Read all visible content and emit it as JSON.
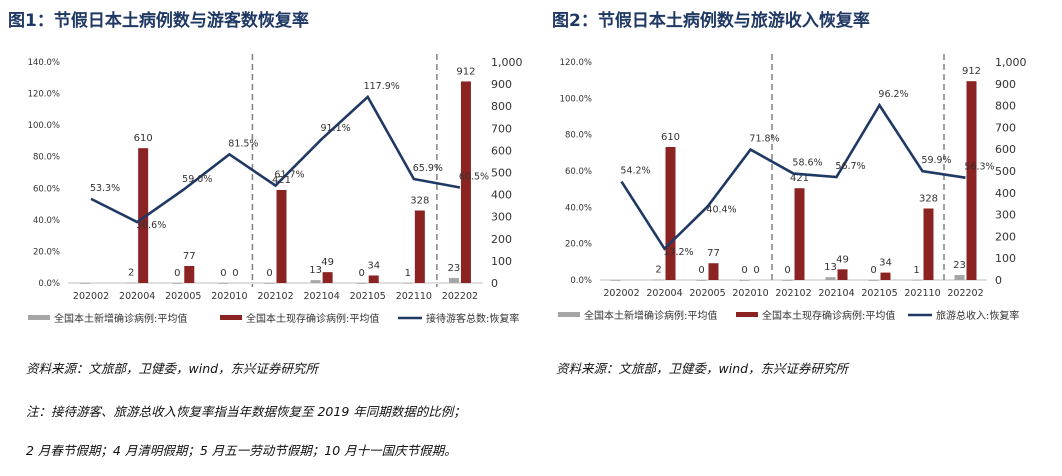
{
  "figure1": {
    "title": "图1：节假日本土病例数与游客数恢复率",
    "source": "资料来源：文旅部，卫健委，wind，东兴证券研究所"
  },
  "figure2": {
    "title": "图2：节假日本土病例数与旅游收入恢复率",
    "source": "资料来源：文旅部，卫健委，wind，东兴证券研究所"
  },
  "note": {
    "line1": "注：接待游客、旅游总收入恢复率指当年数据恢复至 2019 年同期数据的比例；",
    "line2": "2 月春节假期；4 月清明假期；5 月五一劳动节假期；10 月十一国庆节假期。"
  },
  "colors": {
    "new_cases": "#a6a6a6",
    "existing_cases": "#8b2323",
    "line": "#1f3864",
    "divider": "#808080"
  },
  "chart_data": [
    {
      "type": "bar+line",
      "categories": [
        "202002",
        "202004",
        "202005",
        "202010",
        "202102",
        "202104",
        "202105",
        "202110",
        "202202"
      ],
      "series": [
        {
          "name": "全国本土新增确诊病例:平均值",
          "type": "bar",
          "axis": "right",
          "values": [
            0,
            2,
            0,
            0,
            0,
            13,
            0,
            1,
            23
          ],
          "labels": [
            "",
            "2",
            "0",
            "0",
            "0",
            "13",
            "0",
            "1",
            "23"
          ]
        },
        {
          "name": "全国本土现存确诊病例:平均值",
          "type": "bar",
          "axis": "right",
          "values": [
            0,
            610,
            77,
            0,
            421,
            49,
            34,
            328,
            912
          ],
          "labels": [
            "",
            "610",
            "77",
            "0",
            "421",
            "49",
            "34",
            "328",
            "912"
          ]
        },
        {
          "name": "接待游客总数:恢复率",
          "type": "line",
          "axis": "left",
          "values": [
            53.3,
            38.6,
            59.0,
            81.5,
            61.7,
            91.1,
            117.9,
            65.9,
            60.5
          ],
          "labels": [
            "53.3%",
            "38.6%",
            "59.0%",
            "81.5%",
            "61.7%",
            "91.1%",
            "117.9%",
            "65.9%",
            "60.5%"
          ]
        }
      ],
      "left_axis": {
        "ticks": [
          "0.0%",
          "20.0%",
          "40.0%",
          "60.0%",
          "80.0%",
          "100.0%",
          "120.0%",
          "140.0%"
        ],
        "max": 140
      },
      "right_axis": {
        "ticks": [
          "0",
          "100",
          "200",
          "300",
          "400",
          "500",
          "600",
          "700",
          "800",
          "900",
          "1,000"
        ],
        "max": 1000
      },
      "dividers_after": [
        "202010",
        "202110"
      ],
      "legend_position": "bottom"
    },
    {
      "type": "bar+line",
      "categories": [
        "202002",
        "202004",
        "202005",
        "202010",
        "202102",
        "202104",
        "202105",
        "202110",
        "202202"
      ],
      "series": [
        {
          "name": "全国本土新增确诊病例:平均值",
          "type": "bar",
          "axis": "right",
          "values": [
            0,
            2,
            0,
            0,
            0,
            13,
            0,
            1,
            23
          ],
          "labels": [
            "",
            "2",
            "0",
            "0",
            "0",
            "13",
            "0",
            "1",
            "23"
          ]
        },
        {
          "name": "全国本土现存确诊病例:平均值",
          "type": "bar",
          "axis": "right",
          "values": [
            0,
            610,
            77,
            0,
            421,
            49,
            34,
            328,
            912
          ],
          "labels": [
            "",
            "610",
            "77",
            "0",
            "421",
            "49",
            "34",
            "328",
            "912"
          ]
        },
        {
          "name": "旅游总收入:恢复率",
          "type": "line",
          "axis": "left",
          "values": [
            54.2,
            17.2,
            40.4,
            71.8,
            58.6,
            56.7,
            96.2,
            59.9,
            56.3
          ],
          "labels": [
            "54.2%",
            "17.2%",
            "40.4%",
            "71.8%",
            "58.6%",
            "56.7%",
            "96.2%",
            "59.9%",
            "56.3%"
          ]
        }
      ],
      "left_axis": {
        "ticks": [
          "0.0%",
          "20.0%",
          "40.0%",
          "60.0%",
          "80.0%",
          "100.0%",
          "120.0%"
        ],
        "max": 120
      },
      "right_axis": {
        "ticks": [
          "0",
          "100",
          "200",
          "300",
          "400",
          "500",
          "600",
          "700",
          "800",
          "900",
          "1,000"
        ],
        "max": 1000
      },
      "dividers_after": [
        "202010",
        "202110"
      ],
      "legend_position": "bottom"
    }
  ]
}
